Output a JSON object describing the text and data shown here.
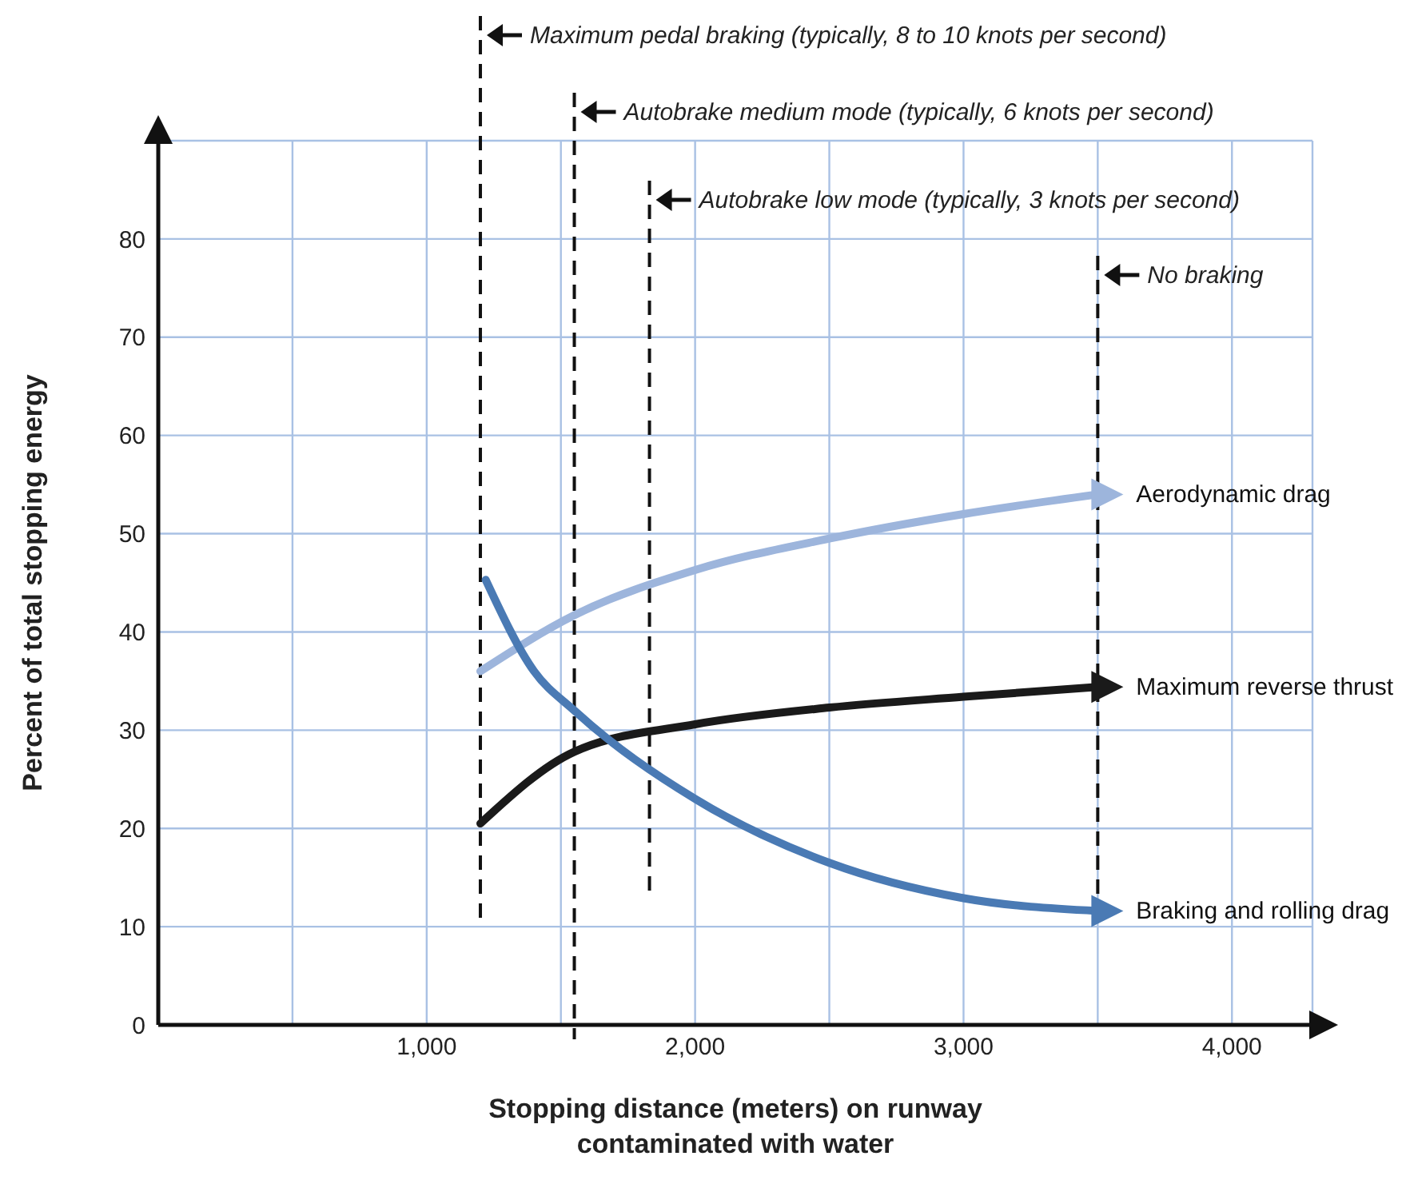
{
  "chart_data": {
    "type": "line",
    "xlabel": "Stopping distance (meters) on runway contaminated with water",
    "ylabel": "Percent of total stopping energy",
    "xlim": [
      0,
      4300
    ],
    "ylim": [
      0,
      90
    ],
    "xticks": [
      {
        "value": 0,
        "label": null
      },
      {
        "value": 500,
        "label": null
      },
      {
        "value": 1000,
        "label": "1,000"
      },
      {
        "value": 1500,
        "label": null
      },
      {
        "value": 2000,
        "label": "2,000"
      },
      {
        "value": 2500,
        "label": null
      },
      {
        "value": 3000,
        "label": "3,000"
      },
      {
        "value": 3500,
        "label": null
      },
      {
        "value": 4000,
        "label": "4,000"
      }
    ],
    "yticks": [
      0,
      10,
      20,
      30,
      40,
      50,
      60,
      70,
      80
    ],
    "grid": true,
    "line_style": "solid",
    "series": [
      {
        "name": "Aerodynamic drag",
        "color": "#9db5dc",
        "x": [
          1200,
          1550,
          2000,
          2500,
          3000,
          3500
        ],
        "values": [
          36,
          41.7,
          46.3,
          49.5,
          52,
          54
        ]
      },
      {
        "name": "Maximum reverse thrust",
        "color": "#1a1a1a",
        "x": [
          1200,
          1550,
          2000,
          2500,
          3000,
          3500
        ],
        "values": [
          20.5,
          27.8,
          30.6,
          32.3,
          33.4,
          34.4
        ]
      },
      {
        "name": "Braking and rolling drag",
        "color": "#4a7ab4",
        "x": [
          1220,
          1400,
          1550,
          2000,
          2500,
          3000,
          3500
        ],
        "values": [
          45.3,
          36,
          32,
          23,
          16.5,
          12.9,
          11.6
        ]
      }
    ],
    "ref_lines": [
      {
        "axis": "x",
        "value": 1200,
        "label": "Maximum pedal braking (typically, 8 to 10 knots per second)",
        "color": "#111111",
        "line_style": "dashed"
      },
      {
        "axis": "x",
        "value": 1550,
        "label": "Autobrake medium mode (typically, 6 knots per second)",
        "color": "#111111",
        "line_style": "dashed"
      },
      {
        "axis": "x",
        "value": 1830,
        "label": "Autobrake low mode (typically, 3 knots per second)",
        "color": "#111111",
        "line_style": "dashed"
      },
      {
        "axis": "x",
        "value": 3500,
        "label": "No braking",
        "color": "#111111",
        "line_style": "dashed"
      }
    ]
  }
}
